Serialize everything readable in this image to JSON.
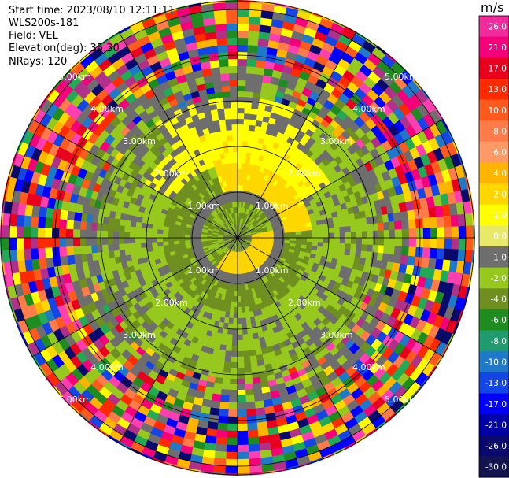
{
  "header": {
    "start_time": "Start time: 2023/08/10 12:11:11",
    "instrument": "WLS200s-181",
    "field": "Field: VEL",
    "elevation": "Elevation(deg): 35.30",
    "nrays": "NRays: 120"
  },
  "range_rings": {
    "labels": [
      "1.00km",
      "2.00km",
      "3.00km",
      "4.00km",
      "5.00km"
    ]
  },
  "colorbar": {
    "unit": "m/s",
    "ticks": [
      "26.0",
      "21.0",
      "17.0",
      "13.0",
      "10.0",
      "8.0",
      "6.0",
      "4.0",
      "2.0",
      "1.0",
      "0.0",
      "-1.0",
      "-2.0",
      "-4.0",
      "-6.0",
      "-8.0",
      "-10.0",
      "-13.0",
      "-17.0",
      "-21.0",
      "-26.0",
      "-30.0"
    ],
    "colors": [
      "#f02b9b",
      "#f5007a",
      "#e8001e",
      "#ff2a00",
      "#ff5a1e",
      "#ff7c4a",
      "#ff9a66",
      "#ffb400",
      "#ffd700",
      "#ffff00",
      "#e8e86a",
      "#6e6e6e",
      "#96c81e",
      "#6f8f20",
      "#1e8c1e",
      "#1f9b6e",
      "#1f78c8",
      "#1446e6",
      "#0000ff",
      "#0000a8",
      "#0a0a6e",
      "#141450"
    ]
  }
}
